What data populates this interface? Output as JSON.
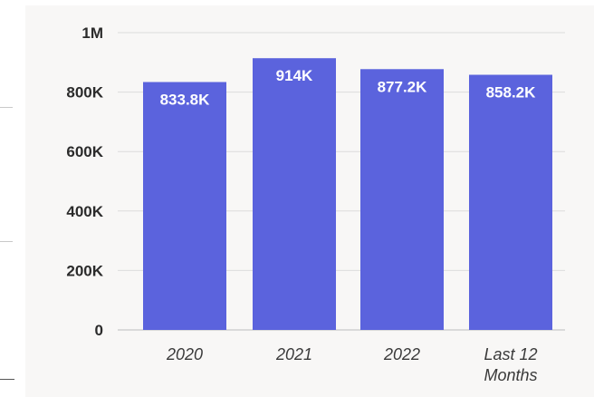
{
  "chart_data": {
    "type": "bar",
    "categories": [
      "2020",
      "2021",
      "2022",
      "Last 12 Months"
    ],
    "category_lines": [
      [
        "2020"
      ],
      [
        "2021"
      ],
      [
        "2022"
      ],
      [
        "Last 12",
        "Months"
      ]
    ],
    "values": [
      833800,
      914000,
      877200,
      858200
    ],
    "data_labels": [
      "833.8K",
      "914K",
      "877.2K",
      "858.2K"
    ],
    "title": "",
    "xlabel": "",
    "ylabel": "",
    "ylim": [
      0,
      1000000
    ],
    "yticks": [
      0,
      200000,
      400000,
      600000,
      800000,
      1000000
    ],
    "ytick_labels": [
      "0",
      "200K",
      "400K",
      "600K",
      "800K",
      "1M"
    ],
    "grid": true,
    "legend": "none",
    "colors": {
      "bar": "#5b63dd",
      "grid": "#dcdcdc",
      "axis": "#bdbdbd",
      "background": "#f8f7f6"
    }
  }
}
